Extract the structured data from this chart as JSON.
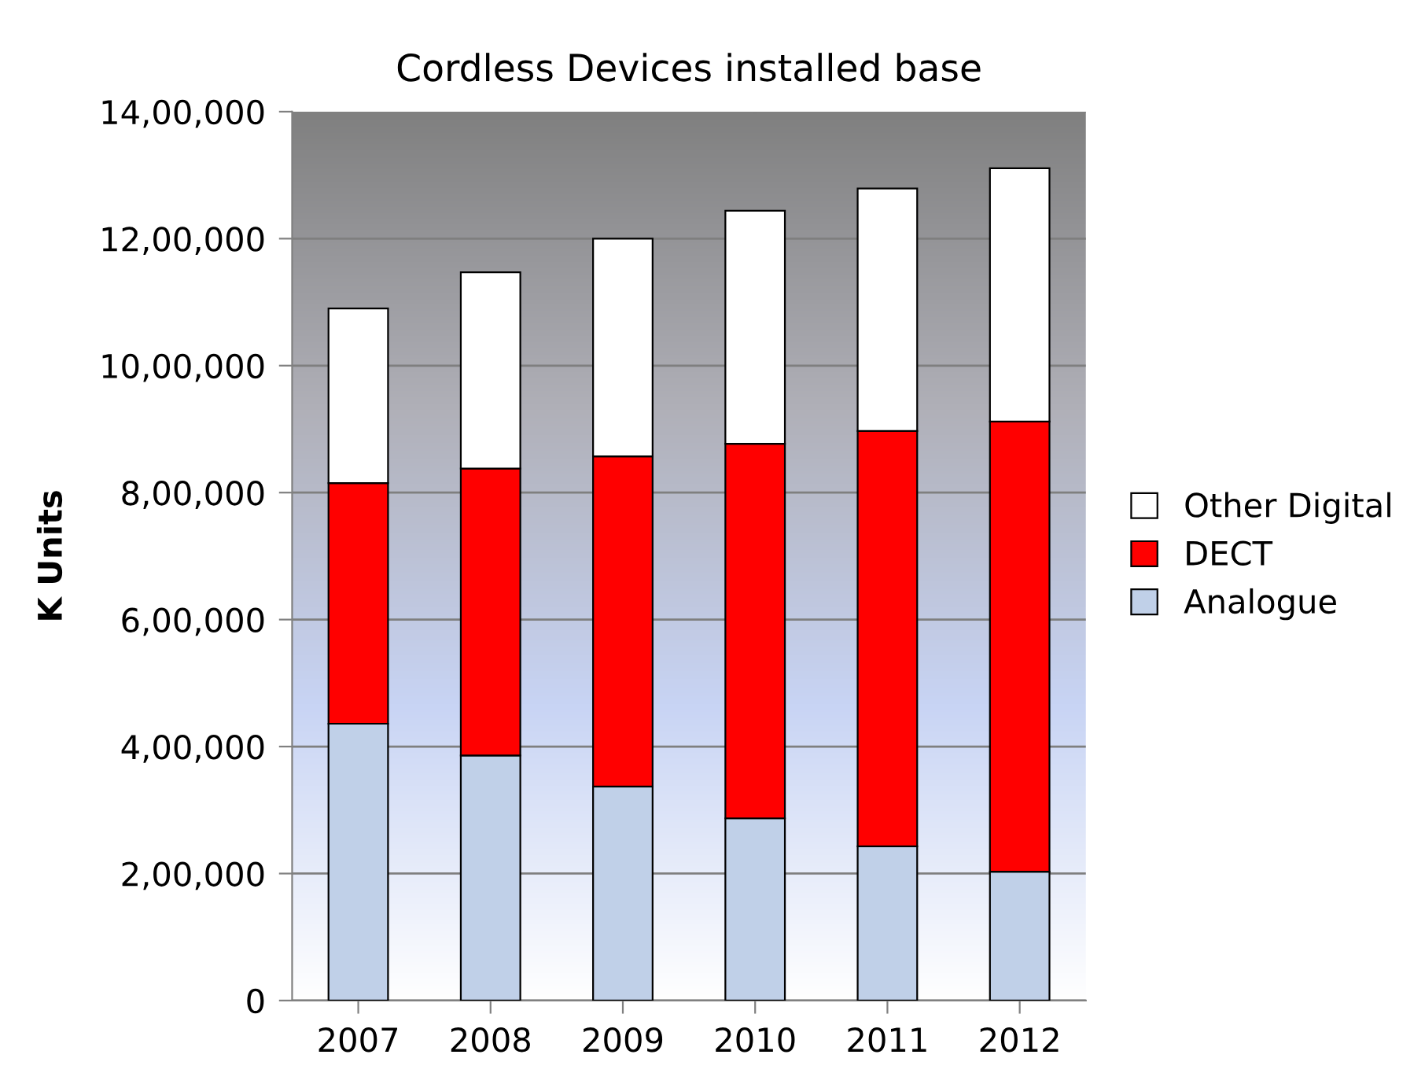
{
  "chart_data": {
    "type": "bar",
    "title": "Cordless Devices installed base",
    "ylabel": "K Units",
    "categories": [
      "2007",
      "2008",
      "2009",
      "2010",
      "2011",
      "2012"
    ],
    "stacked": true,
    "series": [
      {
        "name": "Analogue",
        "color": "#c0d0e8",
        "values": [
          436000,
          386000,
          337000,
          287000,
          243000,
          203000
        ]
      },
      {
        "name": "DECT",
        "color": "#ff0000",
        "values": [
          379000,
          452000,
          520000,
          590000,
          654000,
          709000
        ]
      },
      {
        "name": "Other Digital",
        "color": "#ffffff",
        "values": [
          275000,
          309000,
          343000,
          367000,
          382000,
          399000
        ]
      }
    ],
    "ylim": [
      0,
      1400000
    ],
    "yticks": [
      0,
      {
        "value": 200000,
        "label": "2,00,000"
      },
      {
        "value": 400000,
        "label": "4,00,000"
      },
      {
        "value": 600000,
        "label": "6,00,000"
      },
      {
        "value": 800000,
        "label": "8,00,000"
      },
      {
        "value": 1000000,
        "label": "10,00,000"
      },
      {
        "value": 1200000,
        "label": "12,00,000"
      },
      {
        "value": 1400000,
        "label": "14,00,000"
      }
    ],
    "grid": "y",
    "legend": "right"
  }
}
